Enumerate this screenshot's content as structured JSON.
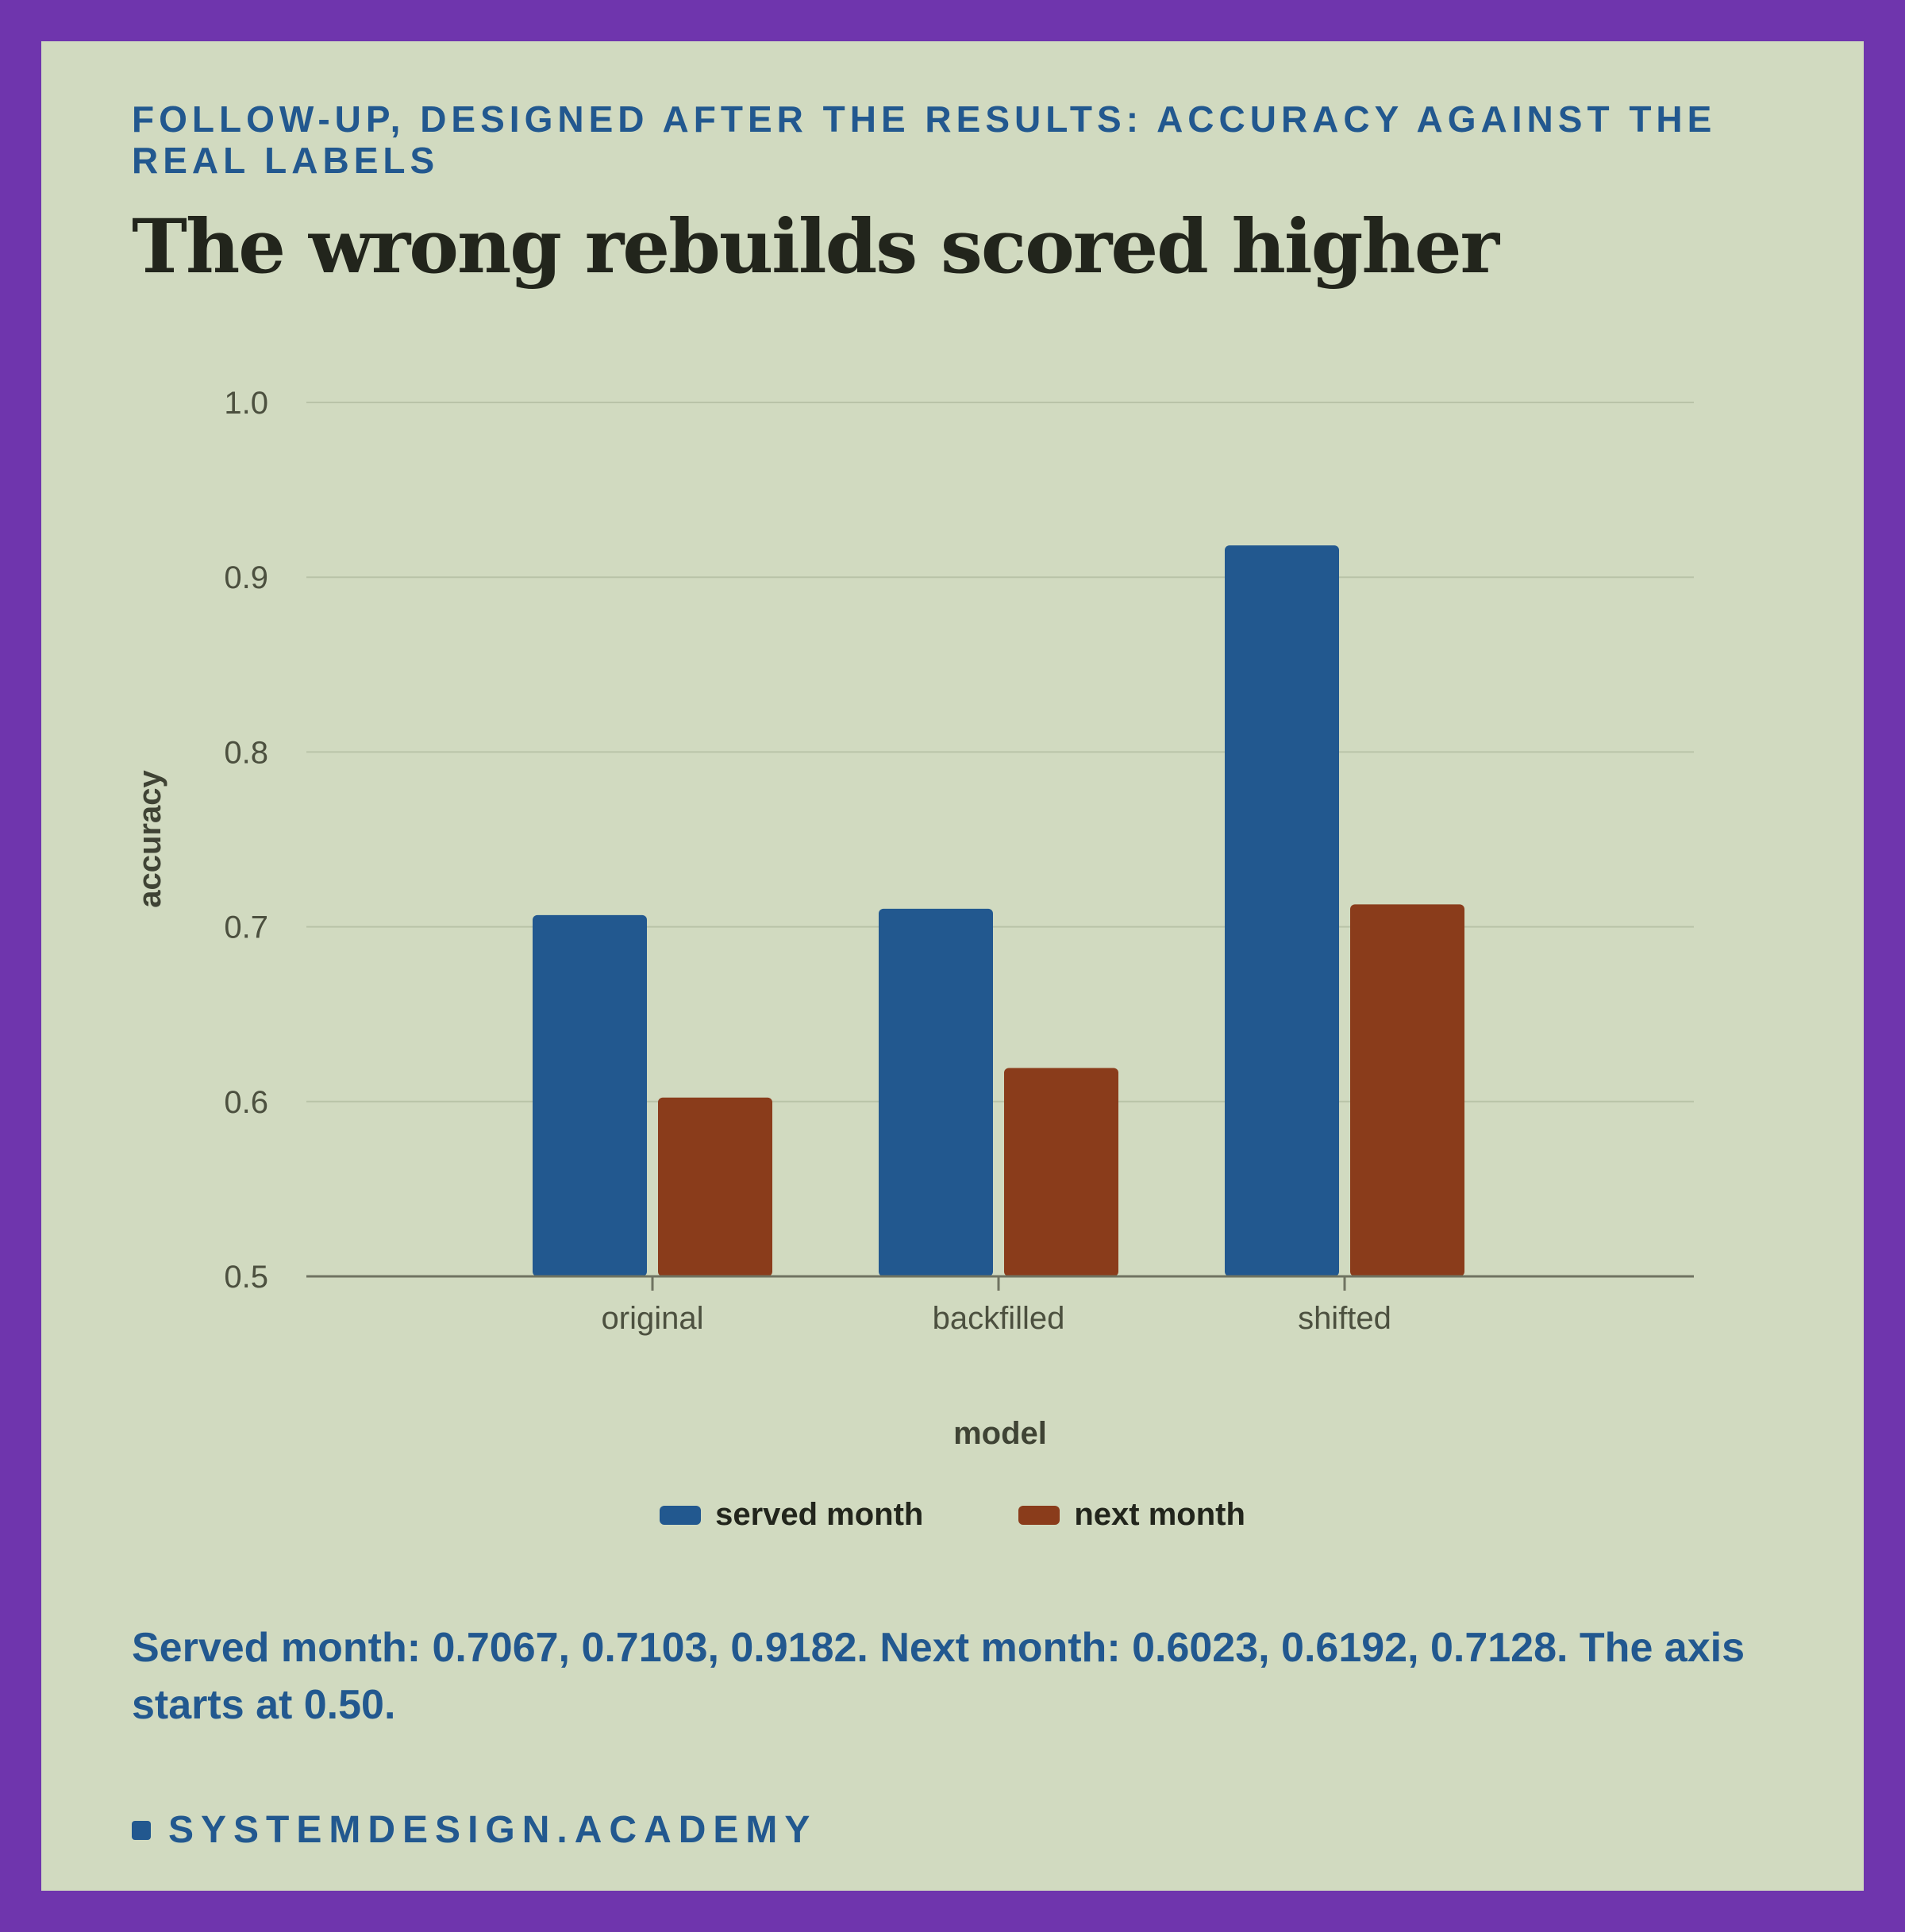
{
  "kicker": "FOLLOW-UP, DESIGNED AFTER THE RESULTS: ACCURACY AGAINST THE REAL LABELS",
  "title": "The wrong rebuilds scored higher",
  "caption": "Served month: 0.7067, 0.7103, 0.9182. Next month: 0.6023, 0.6192, 0.7128. The axis starts at 0.50.",
  "brand": "SYSTEMDESIGN.ACADEMY",
  "colors": {
    "served": "#22588f",
    "next": "#8a3c1b",
    "frame": "#6f35ad",
    "card": "#d1dac0"
  },
  "chart_data": {
    "type": "bar",
    "categories": [
      "original",
      "backfilled",
      "shifted"
    ],
    "series": [
      {
        "name": "served month",
        "values": [
          0.7067,
          0.7103,
          0.9182
        ]
      },
      {
        "name": "next month",
        "values": [
          0.6023,
          0.6192,
          0.7128
        ]
      }
    ],
    "xlabel": "model",
    "ylabel": "accuracy",
    "ylim": [
      0.5,
      1.0
    ],
    "yticks": [
      "0.5",
      "0.6",
      "0.7",
      "0.8",
      "0.9",
      "1.0"
    ],
    "grid": true,
    "legend": "bottom-center"
  }
}
